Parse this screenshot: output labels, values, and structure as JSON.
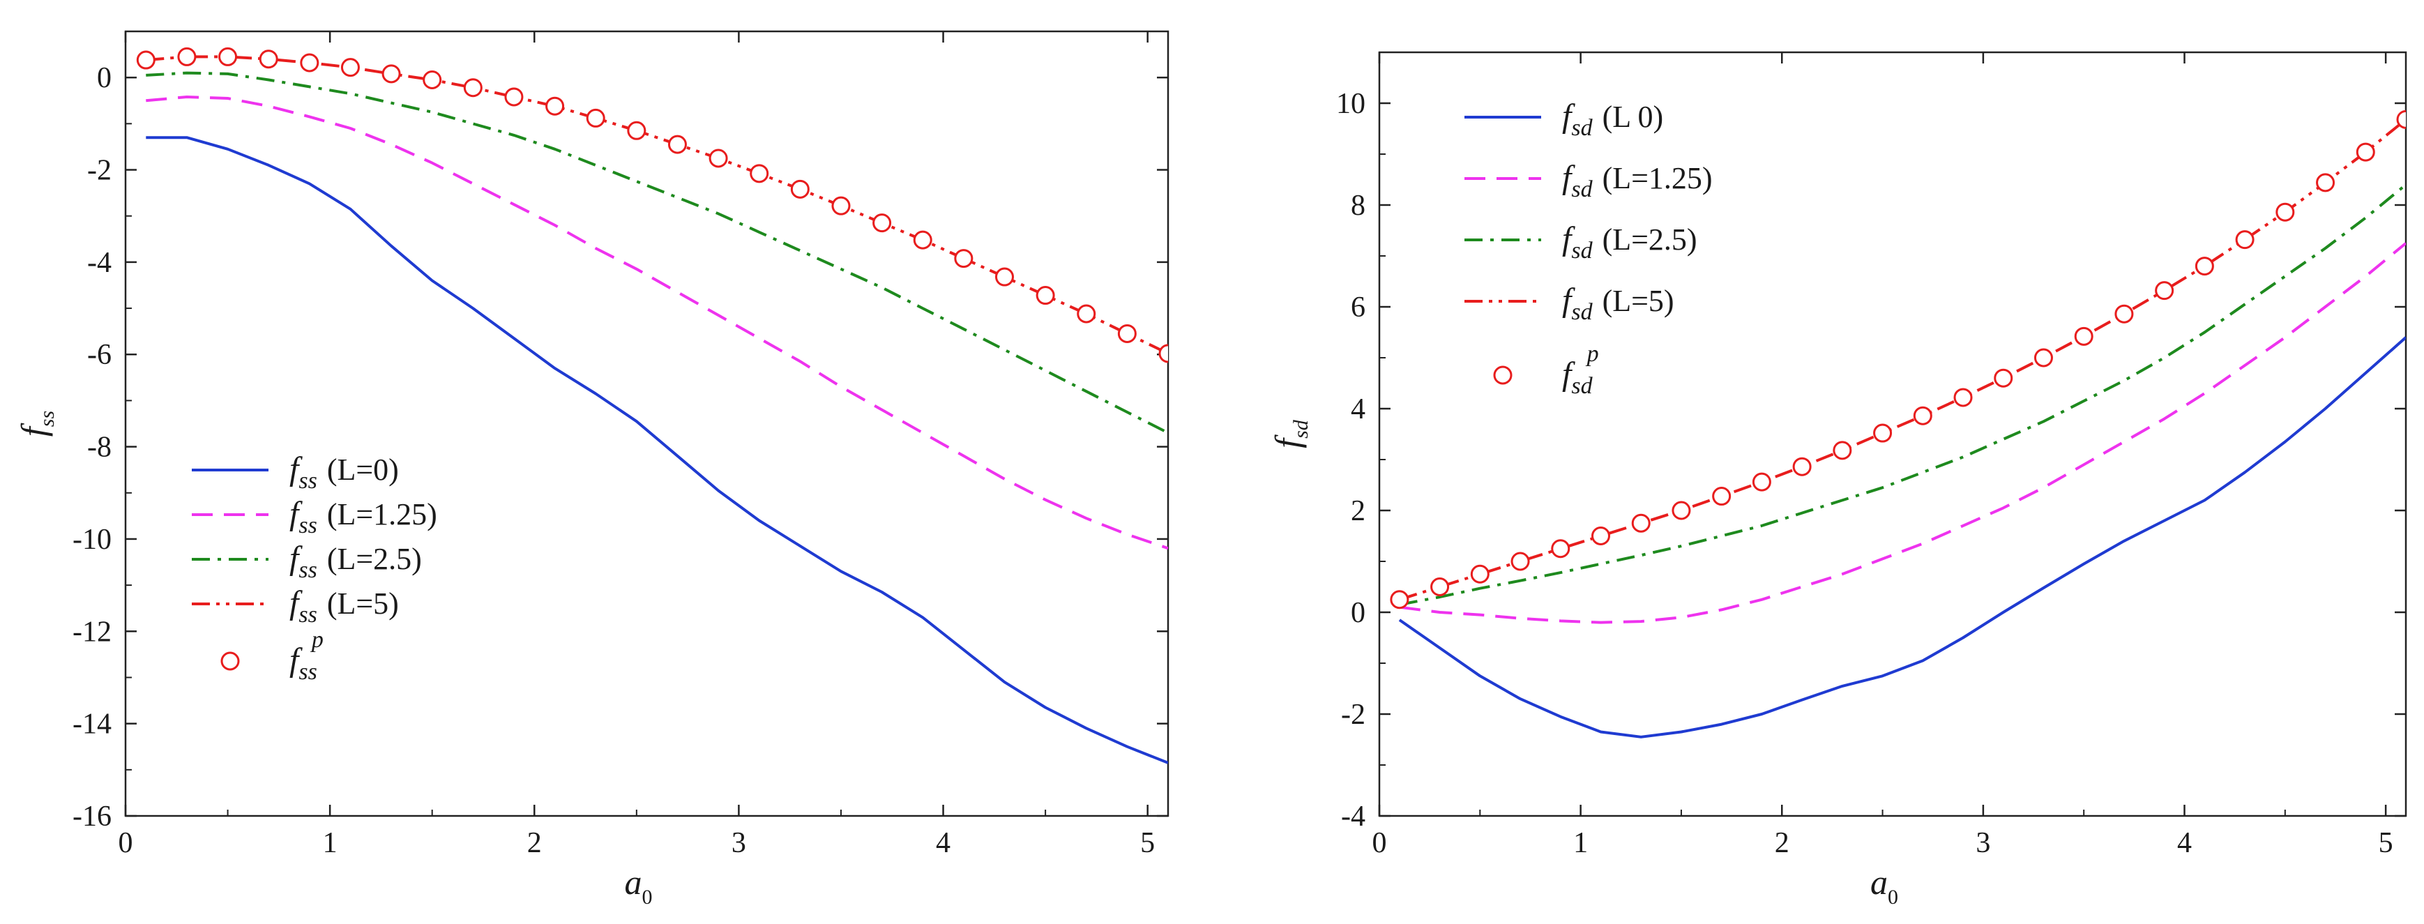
{
  "chart_data": [
    {
      "type": "line",
      "id": "left",
      "xlabel": "a",
      "xlabel_sub": "0",
      "ylabel": "f",
      "ylabel_sub": "ss",
      "xlim": [
        0,
        5.1
      ],
      "ylim": [
        -16,
        1
      ],
      "xticks": [
        0,
        1,
        2,
        3,
        4,
        5
      ],
      "yticks": [
        0,
        -2,
        -4,
        -6,
        -8,
        -10,
        -12,
        -14,
        -16
      ],
      "legend_position": "bottom-left",
      "series": [
        {
          "name": "L=0",
          "legend_text": "(L=0)",
          "style": "solid",
          "color": "#1f3bd1",
          "x": [
            0.1,
            0.3,
            0.5,
            0.7,
            0.9,
            1.1,
            1.3,
            1.5,
            1.7,
            1.9,
            2.1,
            2.3,
            2.5,
            2.7,
            2.9,
            3.1,
            3.3,
            3.5,
            3.7,
            3.9,
            4.1,
            4.3,
            4.5,
            4.7,
            4.9,
            5.1
          ],
          "y": [
            -1.3,
            -1.3,
            -1.55,
            -1.9,
            -2.3,
            -2.85,
            -3.65,
            -4.4,
            -5.0,
            -5.65,
            -6.3,
            -6.85,
            -7.45,
            -8.2,
            -8.95,
            -9.6,
            -10.15,
            -10.7,
            -11.15,
            -11.7,
            -12.4,
            -13.1,
            -13.65,
            -14.1,
            -14.5,
            -14.85
          ]
        },
        {
          "name": "L=1.25",
          "legend_text": "(L=1.25)",
          "style": "dashed",
          "color": "#ee33ee",
          "x": [
            0.1,
            0.3,
            0.5,
            0.7,
            0.9,
            1.1,
            1.3,
            1.5,
            1.7,
            1.9,
            2.1,
            2.3,
            2.5,
            2.7,
            2.9,
            3.1,
            3.3,
            3.5,
            3.7,
            3.9,
            4.1,
            4.3,
            4.5,
            4.7,
            4.9,
            5.1
          ],
          "y": [
            -0.5,
            -0.42,
            -0.45,
            -0.62,
            -0.85,
            -1.1,
            -1.45,
            -1.85,
            -2.3,
            -2.75,
            -3.2,
            -3.7,
            -4.15,
            -4.65,
            -5.15,
            -5.65,
            -6.15,
            -6.7,
            -7.2,
            -7.7,
            -8.2,
            -8.7,
            -9.15,
            -9.55,
            -9.9,
            -10.2
          ]
        },
        {
          "name": "L=2.5",
          "legend_text": "(L=2.5)",
          "style": "dashdot",
          "color": "#1e8a1e",
          "x": [
            0.1,
            0.3,
            0.5,
            0.7,
            0.9,
            1.1,
            1.3,
            1.5,
            1.7,
            1.9,
            2.1,
            2.3,
            2.5,
            2.7,
            2.9,
            3.1,
            3.3,
            3.5,
            3.7,
            3.9,
            4.1,
            4.3,
            4.5,
            4.7,
            4.9,
            5.1
          ],
          "y": [
            0.05,
            0.1,
            0.08,
            -0.05,
            -0.2,
            -0.35,
            -0.55,
            -0.75,
            -1.0,
            -1.25,
            -1.55,
            -1.9,
            -2.25,
            -2.6,
            -2.95,
            -3.35,
            -3.75,
            -4.15,
            -4.55,
            -5.0,
            -5.45,
            -5.9,
            -6.35,
            -6.8,
            -7.25,
            -7.7
          ]
        },
        {
          "name": "L=5",
          "legend_text": "(L=5)",
          "style": "dashdotdot",
          "color": "#e81d1d",
          "x": [
            0.1,
            0.3,
            0.5,
            0.7,
            0.9,
            1.1,
            1.3,
            1.5,
            1.7,
            1.9,
            2.1,
            2.3,
            2.5,
            2.7,
            2.9,
            3.1,
            3.3,
            3.5,
            3.7,
            3.9,
            4.1,
            4.3,
            4.5,
            4.7,
            4.9,
            5.1
          ],
          "y": [
            0.38,
            0.45,
            0.45,
            0.4,
            0.32,
            0.22,
            0.08,
            -0.05,
            -0.22,
            -0.42,
            -0.62,
            -0.88,
            -1.15,
            -1.45,
            -1.75,
            -2.08,
            -2.42,
            -2.78,
            -3.15,
            -3.52,
            -3.92,
            -4.32,
            -4.72,
            -5.12,
            -5.55,
            -5.98
          ]
        },
        {
          "name": "p",
          "legend_text": "p",
          "style": "markers",
          "color": "#e81d1d",
          "x": [
            0.1,
            0.3,
            0.5,
            0.7,
            0.9,
            1.1,
            1.3,
            1.5,
            1.7,
            1.9,
            2.1,
            2.3,
            2.5,
            2.7,
            2.9,
            3.1,
            3.3,
            3.5,
            3.7,
            3.9,
            4.1,
            4.3,
            4.5,
            4.7,
            4.9,
            5.1
          ],
          "y": [
            0.38,
            0.45,
            0.45,
            0.4,
            0.32,
            0.22,
            0.08,
            -0.05,
            -0.22,
            -0.42,
            -0.62,
            -0.88,
            -1.15,
            -1.45,
            -1.75,
            -2.08,
            -2.42,
            -2.78,
            -3.15,
            -3.52,
            -3.92,
            -4.32,
            -4.72,
            -5.12,
            -5.55,
            -5.98
          ]
        }
      ]
    },
    {
      "type": "line",
      "id": "right",
      "xlabel": "a",
      "xlabel_sub": "0",
      "ylabel": "f",
      "ylabel_sub": "sd",
      "xlim": [
        0,
        5.1
      ],
      "ylim": [
        -4,
        11
      ],
      "xticks": [
        0,
        1,
        2,
        3,
        4,
        5
      ],
      "yticks": [
        10,
        8,
        6,
        4,
        2,
        0,
        -2,
        -4
      ],
      "legend_position": "top-left",
      "series": [
        {
          "name": "L=0",
          "legend_text": "(L  0)",
          "style": "solid",
          "color": "#1f3bd1",
          "x": [
            0.1,
            0.3,
            0.5,
            0.7,
            0.9,
            1.1,
            1.3,
            1.5,
            1.7,
            1.9,
            2.1,
            2.3,
            2.5,
            2.7,
            2.9,
            3.1,
            3.3,
            3.5,
            3.7,
            3.9,
            4.1,
            4.3,
            4.5,
            4.7,
            4.9,
            5.1
          ],
          "y": [
            -0.15,
            -0.7,
            -1.25,
            -1.7,
            -2.05,
            -2.35,
            -2.45,
            -2.35,
            -2.2,
            -2.0,
            -1.72,
            -1.45,
            -1.25,
            -0.95,
            -0.5,
            0.0,
            0.48,
            0.95,
            1.4,
            1.8,
            2.2,
            2.75,
            3.35,
            4.0,
            4.7,
            5.4
          ]
        },
        {
          "name": "L=1.25",
          "legend_text": "(L=1.25)",
          "style": "dashed",
          "color": "#ee33ee",
          "x": [
            0.1,
            0.3,
            0.5,
            0.7,
            0.9,
            1.1,
            1.3,
            1.5,
            1.7,
            1.9,
            2.1,
            2.3,
            2.5,
            2.7,
            2.9,
            3.1,
            3.3,
            3.5,
            3.7,
            3.9,
            4.1,
            4.3,
            4.5,
            4.7,
            4.9,
            5.1
          ],
          "y": [
            0.1,
            0.0,
            -0.05,
            -0.12,
            -0.17,
            -0.2,
            -0.18,
            -0.1,
            0.05,
            0.25,
            0.5,
            0.75,
            1.05,
            1.35,
            1.7,
            2.05,
            2.45,
            2.9,
            3.35,
            3.8,
            4.3,
            4.85,
            5.4,
            6.0,
            6.6,
            7.25
          ]
        },
        {
          "name": "L=2.5",
          "legend_text": "(L=2.5)",
          "style": "dashdot",
          "color": "#1e8a1e",
          "x": [
            0.1,
            0.3,
            0.5,
            0.7,
            0.9,
            1.1,
            1.3,
            1.5,
            1.7,
            1.9,
            2.1,
            2.3,
            2.5,
            2.7,
            2.9,
            3.1,
            3.3,
            3.5,
            3.7,
            3.9,
            4.1,
            4.3,
            4.5,
            4.7,
            4.9,
            5.1
          ],
          "y": [
            0.15,
            0.3,
            0.47,
            0.62,
            0.78,
            0.95,
            1.12,
            1.3,
            1.5,
            1.7,
            1.95,
            2.2,
            2.45,
            2.75,
            3.05,
            3.4,
            3.75,
            4.15,
            4.55,
            5.0,
            5.5,
            6.05,
            6.6,
            7.15,
            7.75,
            8.4
          ]
        },
        {
          "name": "L=5",
          "legend_text": "(L=5)",
          "style": "dashdotdot",
          "color": "#e81d1d",
          "x": [
            0.1,
            0.3,
            0.5,
            0.7,
            0.9,
            1.1,
            1.3,
            1.5,
            1.7,
            1.9,
            2.1,
            2.3,
            2.5,
            2.7,
            2.9,
            3.1,
            3.3,
            3.5,
            3.7,
            3.9,
            4.1,
            4.3,
            4.5,
            4.7,
            4.9,
            5.1
          ],
          "y": [
            0.25,
            0.5,
            0.75,
            1.0,
            1.25,
            1.5,
            1.75,
            2.0,
            2.28,
            2.56,
            2.86,
            3.18,
            3.52,
            3.86,
            4.22,
            4.6,
            5.0,
            5.42,
            5.86,
            6.32,
            6.8,
            7.32,
            7.86,
            8.44,
            9.04,
            9.68
          ]
        },
        {
          "name": "p",
          "legend_text": "p",
          "style": "markers",
          "color": "#e81d1d",
          "x": [
            0.1,
            0.3,
            0.5,
            0.7,
            0.9,
            1.1,
            1.3,
            1.5,
            1.7,
            1.9,
            2.1,
            2.3,
            2.5,
            2.7,
            2.9,
            3.1,
            3.3,
            3.5,
            3.7,
            3.9,
            4.1,
            4.3,
            4.5,
            4.7,
            4.9,
            5.1
          ],
          "y": [
            0.25,
            0.5,
            0.75,
            1.0,
            1.25,
            1.5,
            1.75,
            2.0,
            2.28,
            2.56,
            2.86,
            3.18,
            3.52,
            3.86,
            4.22,
            4.6,
            5.0,
            5.42,
            5.86,
            6.32,
            6.8,
            7.32,
            7.86,
            8.44,
            9.04,
            9.68
          ]
        }
      ]
    }
  ]
}
